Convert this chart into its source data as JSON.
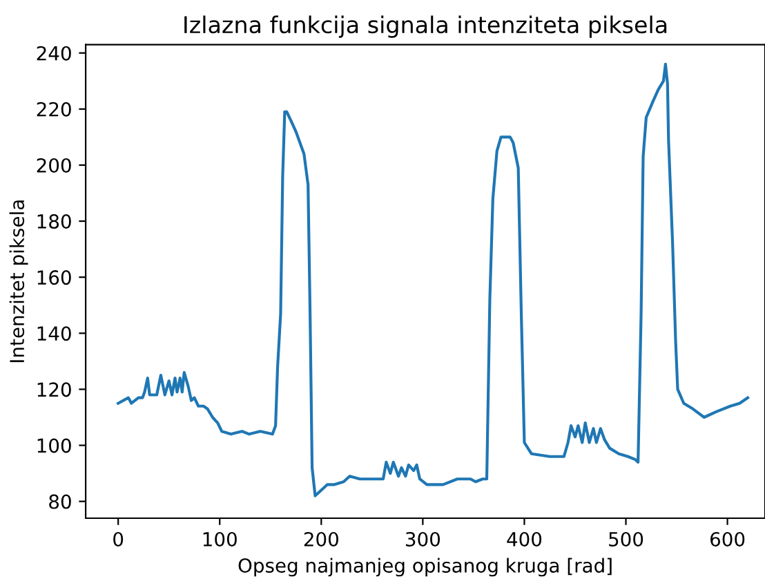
{
  "chart_data": {
    "type": "line",
    "title": "Izlazna funkcija signala intenziteta piksela",
    "xlabel": "Opseg najmanjeg opisanog kruga [rad]",
    "ylabel": "Intenzitet piksela",
    "xlim": [
      -32,
      637
    ],
    "ylim": [
      74,
      243
    ],
    "xticks": [
      0,
      100,
      200,
      300,
      400,
      500,
      600
    ],
    "yticks": [
      80,
      100,
      120,
      140,
      160,
      180,
      200,
      220,
      240
    ],
    "grid": false,
    "legend": false,
    "series": [
      {
        "color": "#1f77b4",
        "x": [
          0,
          10,
          13,
          20,
          24,
          26,
          29,
          31,
          38,
          42,
          46,
          50,
          53,
          56,
          58,
          61,
          63,
          65,
          69,
          72,
          75,
          79,
          84,
          88,
          93,
          98,
          102,
          111,
          122,
          129,
          140,
          152,
          155,
          157,
          160,
          162,
          164,
          166,
          170,
          175,
          179,
          183,
          187,
          189,
          191,
          194,
          200,
          206,
          213,
          222,
          228,
          238,
          250,
          261,
          264,
          268,
          271,
          276,
          279,
          283,
          286,
          291,
          294,
          297,
          304,
          311,
          320,
          334,
          347,
          352,
          359,
          363,
          366,
          369,
          373,
          377,
          386,
          389,
          394,
          397,
          400,
          407,
          425,
          439,
          443,
          446,
          450,
          453,
          457,
          460,
          464,
          468,
          471,
          475,
          479,
          484,
          493,
          502,
          509,
          512,
          515,
          517,
          520,
          527,
          532,
          537,
          539,
          541,
          542,
          546,
          549,
          551,
          557,
          566,
          577,
          589,
          603,
          612,
          620
        ],
        "values": [
          115,
          117,
          115,
          117,
          117,
          119,
          124,
          118,
          118,
          125,
          118,
          123,
          118,
          124,
          119,
          124,
          119,
          126,
          121,
          116,
          117,
          114,
          114,
          113,
          110,
          108,
          105,
          104,
          105,
          104,
          105,
          104,
          107,
          128,
          147,
          196,
          219,
          219,
          216,
          212,
          208,
          204,
          193,
          147,
          92,
          82,
          84,
          86,
          86,
          87,
          89,
          88,
          88,
          88,
          94,
          90,
          94,
          89,
          92,
          89,
          93,
          91,
          93,
          88,
          86,
          86,
          86,
          88,
          88,
          87,
          88,
          88,
          152,
          188,
          205,
          210,
          210,
          208,
          199,
          147,
          101,
          97,
          96,
          96,
          101,
          107,
          103,
          107,
          101,
          108,
          101,
          106,
          101,
          106,
          102,
          99,
          97,
          96,
          95,
          94,
          147,
          203,
          217,
          223,
          227,
          230,
          236,
          229,
          209,
          172,
          137,
          120,
          115,
          113,
          110,
          112,
          114,
          115,
          117
        ]
      }
    ]
  }
}
